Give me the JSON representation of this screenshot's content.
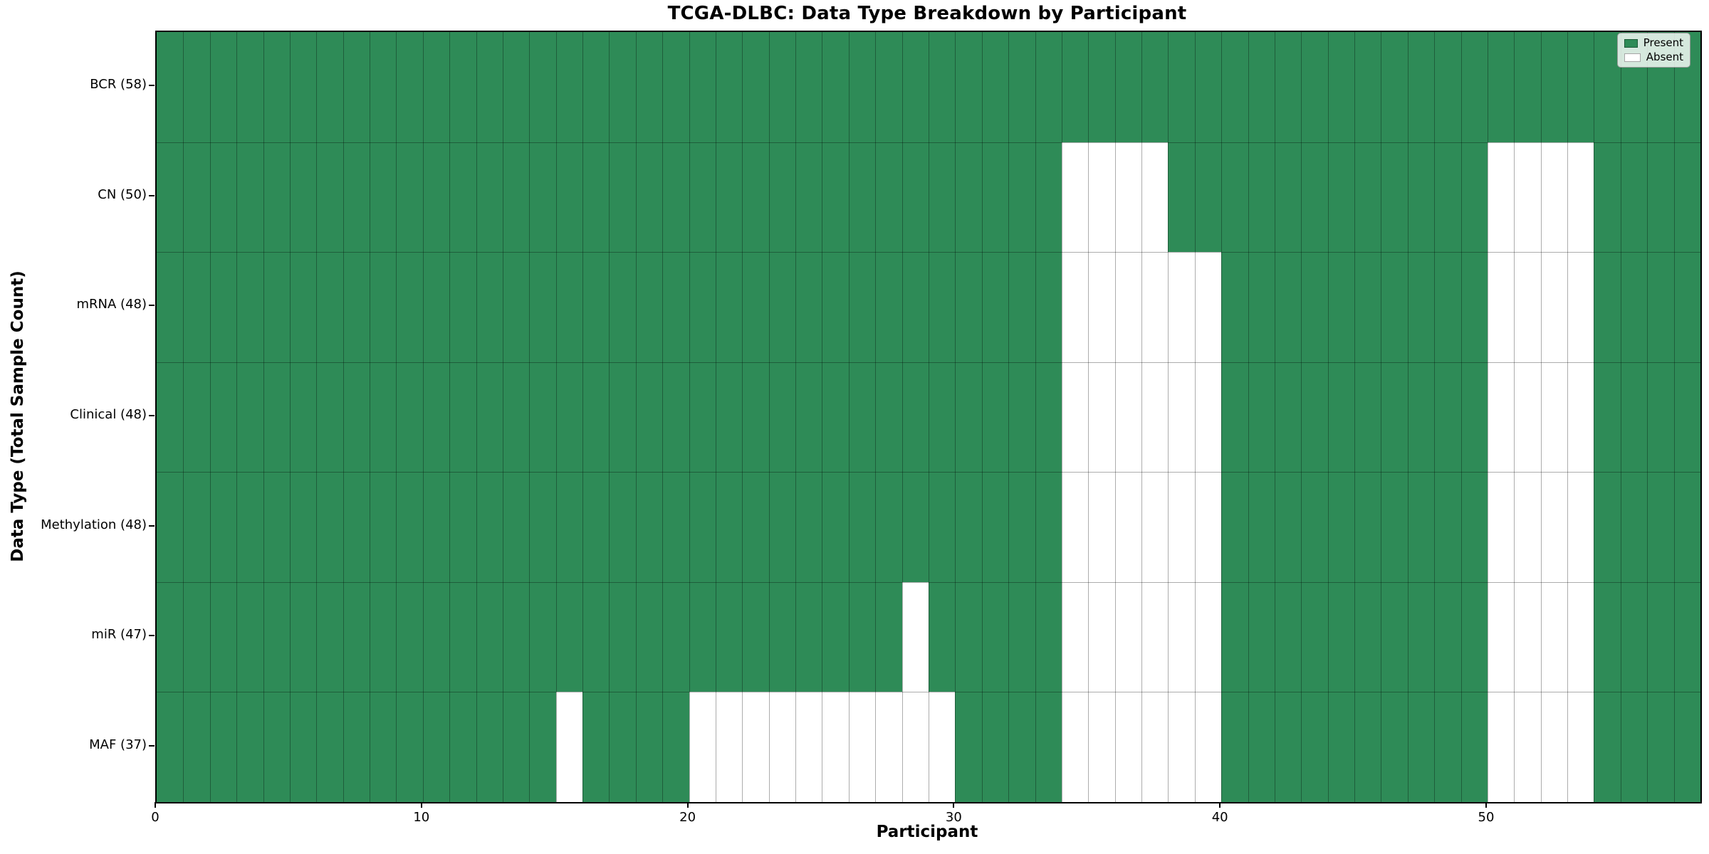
{
  "title": "TCGA-DLBC: Data Type Breakdown by Participant",
  "xlabel": "Participant",
  "ylabel": "Data Type (Total Sample Count)",
  "legend": {
    "present_label": "Present",
    "absent_label": "Absent"
  },
  "colors": {
    "present": "#2e8b57",
    "absent": "#ffffff",
    "grid": "rgba(0,0,0,0.32)",
    "axis": "#000000"
  },
  "chart_data": {
    "type": "heatmap",
    "x_axis": "Participant index",
    "n_participants": 58,
    "x_domain": [
      0,
      58
    ],
    "x_ticks": [
      0,
      10,
      20,
      30,
      40,
      50
    ],
    "grid": true,
    "legend_position": "upper right",
    "cell_states": [
      "Present",
      "Absent"
    ],
    "rows": [
      {
        "label": "BCR (58)",
        "data_type": "BCR",
        "present_total": 58,
        "absent_participants": []
      },
      {
        "label": "CN (50)",
        "data_type": "CN",
        "present_total": 50,
        "absent_participants": [
          34,
          35,
          36,
          37,
          50,
          51,
          52,
          53
        ]
      },
      {
        "label": "mRNA (48)",
        "data_type": "mRNA",
        "present_total": 48,
        "absent_participants": [
          34,
          35,
          36,
          37,
          38,
          39,
          50,
          51,
          52,
          53
        ]
      },
      {
        "label": "Clinical (48)",
        "data_type": "Clinical",
        "present_total": 48,
        "absent_participants": [
          34,
          35,
          36,
          37,
          38,
          39,
          50,
          51,
          52,
          53
        ]
      },
      {
        "label": "Methylation (48)",
        "data_type": "Methylation",
        "present_total": 48,
        "absent_participants": [
          34,
          35,
          36,
          37,
          38,
          39,
          50,
          51,
          52,
          53
        ]
      },
      {
        "label": "miR (47)",
        "data_type": "miR",
        "present_total": 47,
        "absent_participants": [
          28,
          34,
          35,
          36,
          37,
          38,
          39,
          50,
          51,
          52,
          53
        ]
      },
      {
        "label": "MAF (37)",
        "data_type": "MAF",
        "present_total": 37,
        "absent_participants": [
          15,
          20,
          21,
          22,
          23,
          24,
          25,
          26,
          27,
          28,
          29,
          34,
          35,
          36,
          37,
          38,
          39,
          50,
          51,
          52,
          53
        ]
      }
    ]
  }
}
